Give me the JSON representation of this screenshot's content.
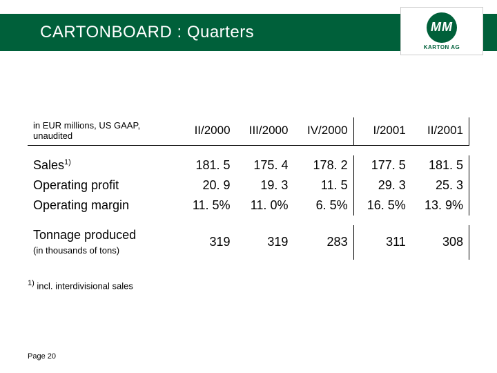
{
  "header": {
    "title": "CARTONBOARD : Quarters",
    "background_color": "#00603a",
    "text_color": "#ffffff"
  },
  "logo": {
    "text": "MM",
    "subtitle": "KARTON AG",
    "circle_color": "#00603a"
  },
  "table": {
    "caption": "in EUR millions, US GAAP, unaudited",
    "columns": [
      "II/2000",
      "III/2000",
      "IV/2000",
      "I/2001",
      "II/2001"
    ],
    "rows": [
      {
        "label": "Sales",
        "sup": "1)",
        "values": [
          "181. 5",
          "175. 4",
          "178. 2",
          "177. 5",
          "181. 5"
        ]
      },
      {
        "label": "Operating profit",
        "values": [
          "20. 9",
          "19. 3",
          "11. 5",
          "29. 3",
          "25. 3"
        ]
      },
      {
        "label": "Operating margin",
        "values": [
          "11. 5%",
          "11. 0%",
          "6. 5%",
          "16. 5%",
          "13. 9%"
        ]
      }
    ],
    "tonnage": {
      "label": "Tonnage produced",
      "subnote": "(in thousands of tons)",
      "values": [
        "319",
        "319",
        "283",
        "311",
        "308"
      ]
    },
    "footnote_sup": "1)",
    "footnote": " incl. interdivisional sales"
  },
  "footer": {
    "page": "Page 20"
  }
}
